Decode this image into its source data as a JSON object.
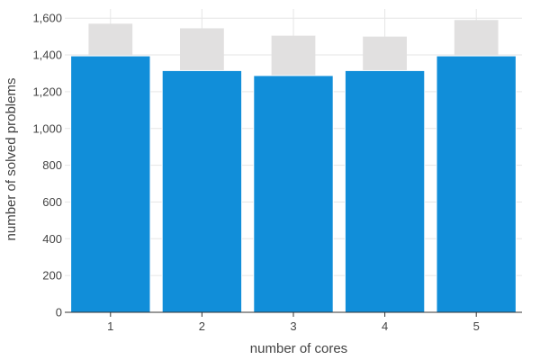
{
  "chart_data": {
    "type": "bar",
    "title": "",
    "xlabel": "number of cores",
    "ylabel": "number of solved problems",
    "categories": [
      "1",
      "2",
      "3",
      "4",
      "5"
    ],
    "ylim": [
      0,
      1650
    ],
    "yticks": [
      0,
      200,
      400,
      600,
      800,
      1000,
      1200,
      1400,
      1600
    ],
    "ytick_labels": [
      "0",
      "200",
      "400",
      "600",
      "800",
      "1,000",
      "1,200",
      "1,400",
      "1,600"
    ],
    "grid": true,
    "legend": "none",
    "series": [
      {
        "values": [
          1395,
          1315,
          1288,
          1315,
          1395
        ],
        "color": "#118ed9"
      },
      {
        "values": [
          1570,
          1545,
          1505,
          1500,
          1590
        ],
        "color": "#e1e0e0"
      }
    ]
  }
}
